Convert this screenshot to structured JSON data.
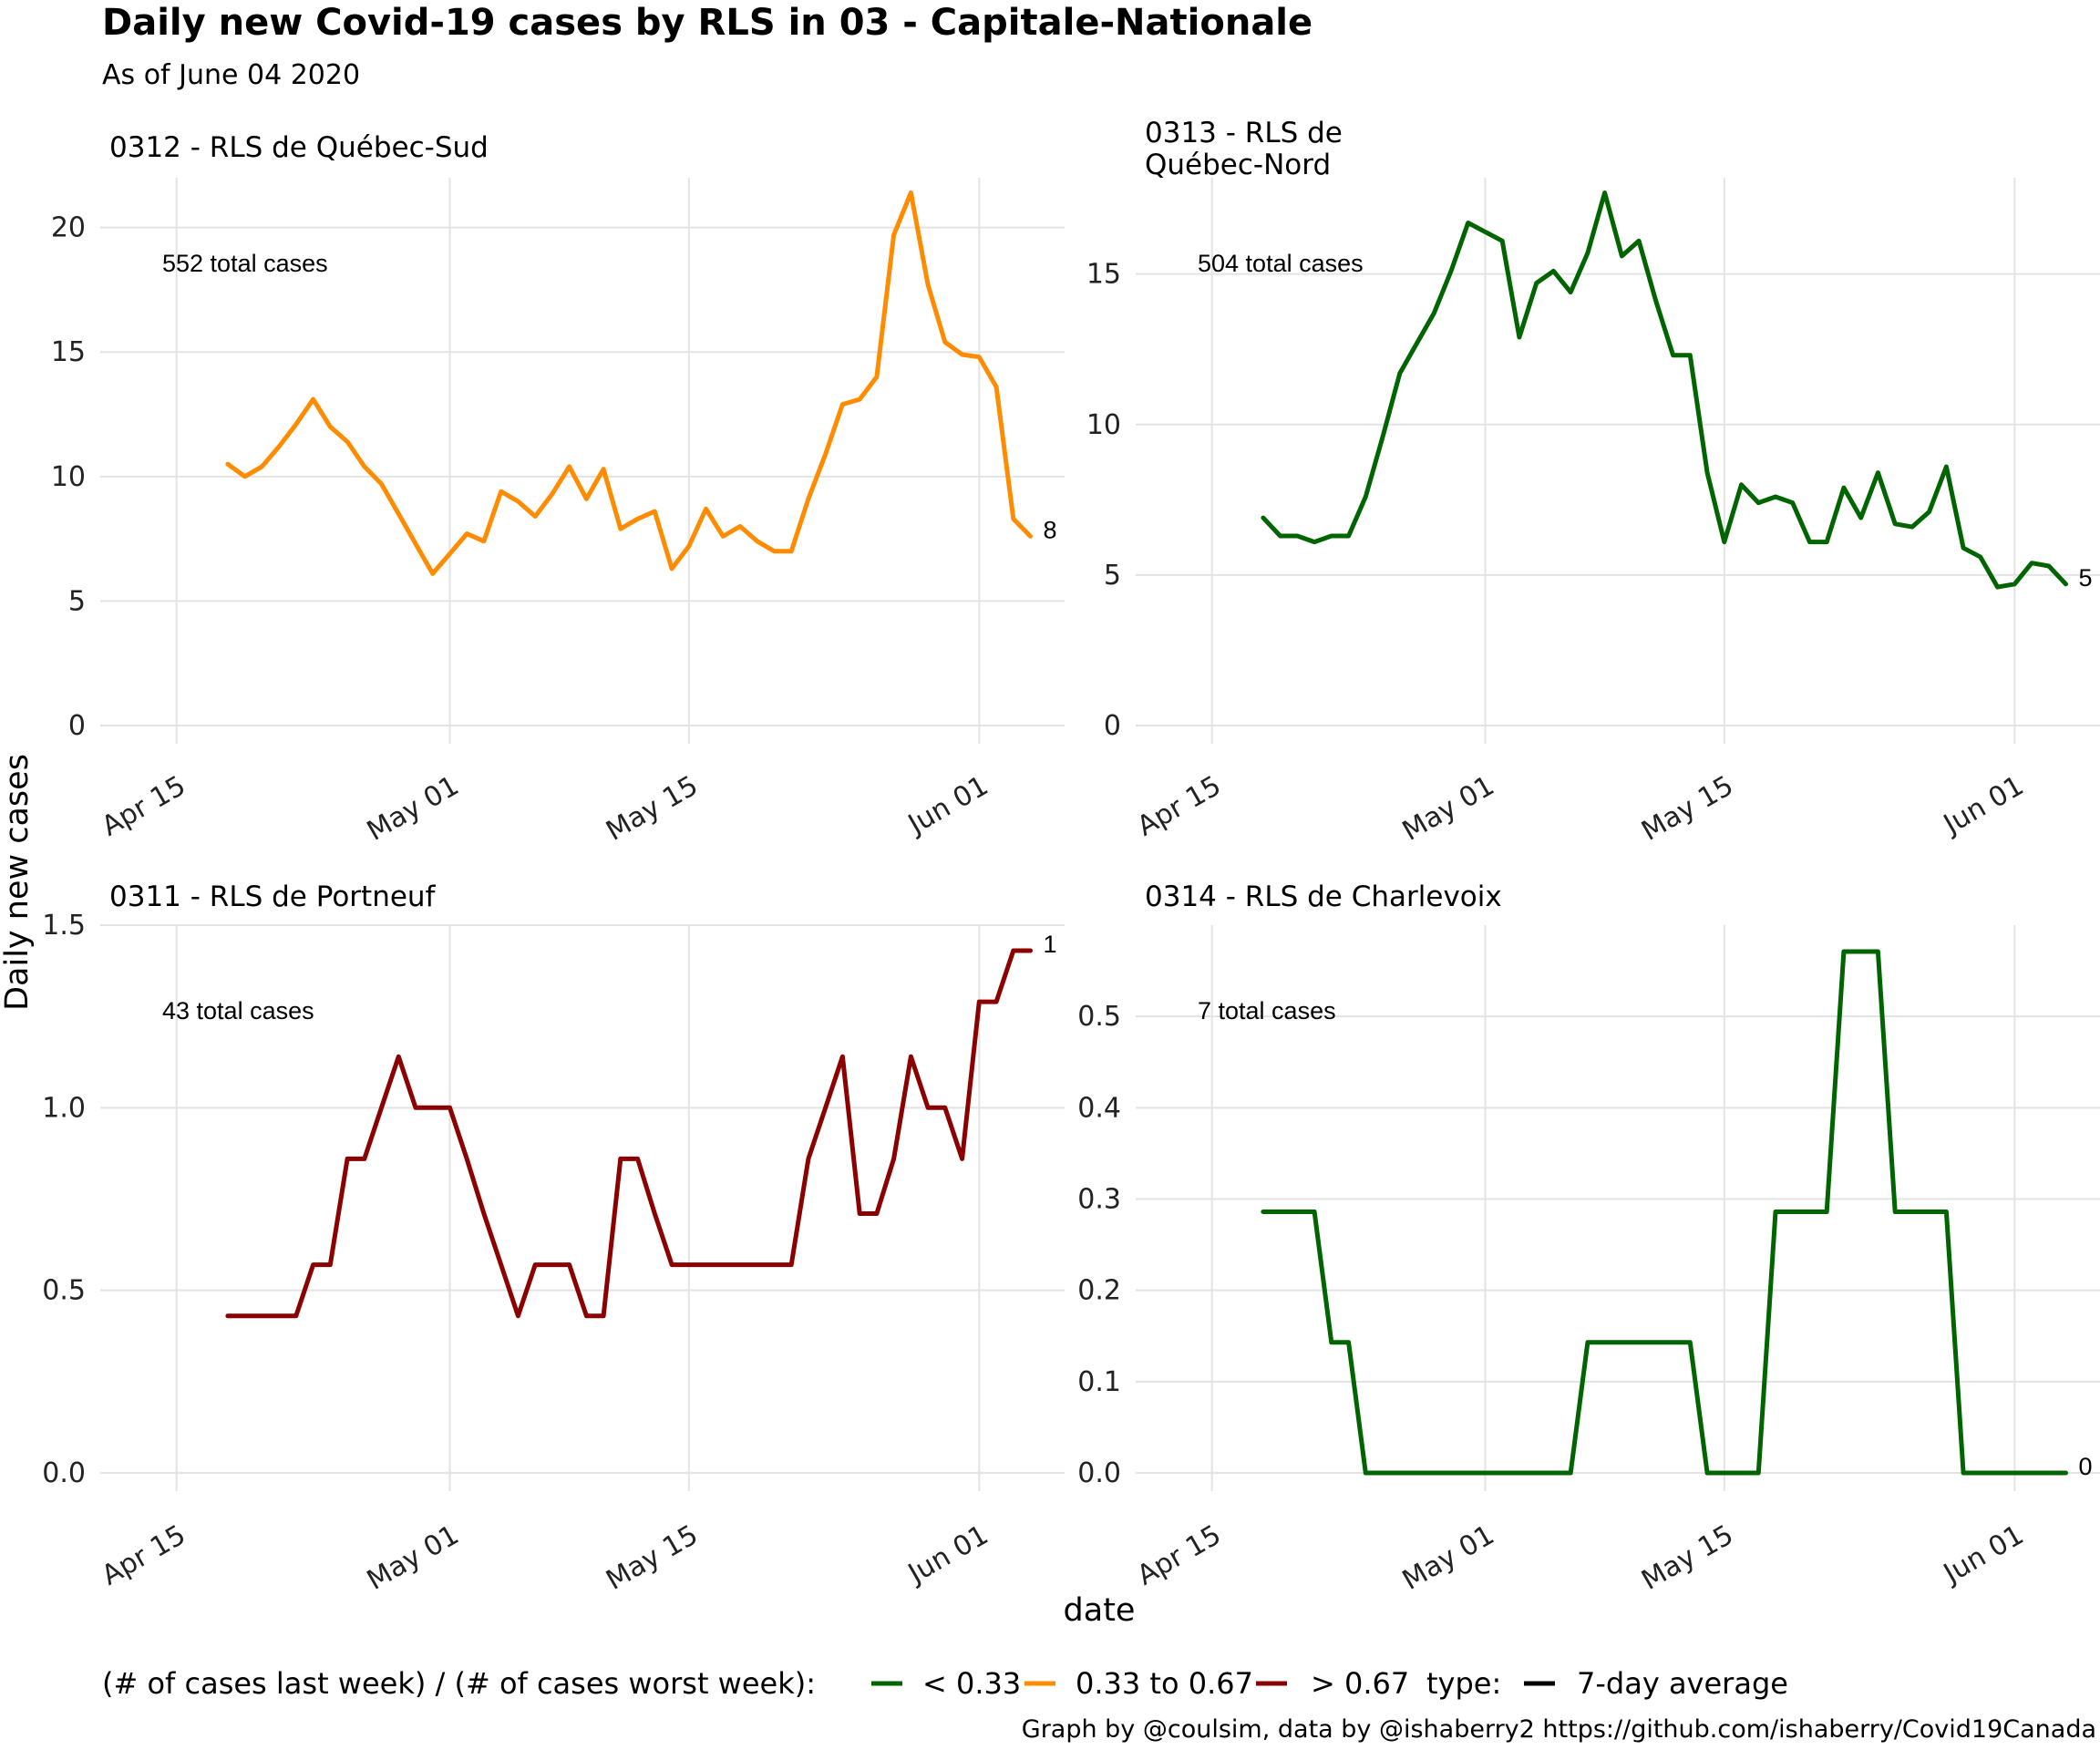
{
  "title": "Daily new Covid-19 cases by RLS in 03 - Capitale-Nationale",
  "subtitle": "As of June 04 2020",
  "x_axis_label": "date",
  "y_axis_label": "Daily new cases",
  "legend": {
    "ratio_title": "(# of cases last week) / (# of cases worst week):",
    "ratio_items": [
      {
        "label": "< 0.33",
        "color": "#006400"
      },
      {
        "label": "0.33 to 0.67",
        "color": "#FF8C00"
      },
      {
        "label": "> 0.67",
        "color": "#8B0000"
      }
    ],
    "type_title": "type:",
    "type_items": [
      {
        "label": "7-day average",
        "color": "#000000"
      }
    ]
  },
  "caption": "Graph by @coulsim, data by @ishaberry2 https://github.com/ishaberry/Covid19Canada",
  "chart_data": [
    {
      "type": "line",
      "title": "0312 - RLS de Québec-Sud",
      "annotation": "552 total cases",
      "end_label": "8",
      "color": "#FF8C00",
      "x_ticks": [
        "Apr 15",
        "May 01",
        "May 15",
        "Jun 01"
      ],
      "y_ticks": [
        "0",
        "5",
        "10",
        "15",
        "20"
      ],
      "xlim": [
        "2020-04-10",
        "2020-06-06"
      ],
      "ylim": [
        0,
        22
      ],
      "x": [
        "2020-04-18",
        "2020-04-19",
        "2020-04-20",
        "2020-04-21",
        "2020-04-22",
        "2020-04-23",
        "2020-04-24",
        "2020-04-25",
        "2020-04-26",
        "2020-04-27",
        "2020-04-28",
        "2020-04-29",
        "2020-04-30",
        "2020-05-01",
        "2020-05-02",
        "2020-05-03",
        "2020-05-04",
        "2020-05-05",
        "2020-05-06",
        "2020-05-07",
        "2020-05-08",
        "2020-05-09",
        "2020-05-10",
        "2020-05-11",
        "2020-05-12",
        "2020-05-13",
        "2020-05-14",
        "2020-05-15",
        "2020-05-16",
        "2020-05-17",
        "2020-05-18",
        "2020-05-19",
        "2020-05-20",
        "2020-05-21",
        "2020-05-22",
        "2020-05-23",
        "2020-05-24",
        "2020-05-25",
        "2020-05-26",
        "2020-05-27",
        "2020-05-28",
        "2020-05-29",
        "2020-05-30",
        "2020-05-31",
        "2020-06-01",
        "2020-06-02",
        "2020-06-03",
        "2020-06-04"
      ],
      "values": [
        10.5,
        10.0,
        10.4,
        11.2,
        12.1,
        13.1,
        12.0,
        11.4,
        10.4,
        9.7,
        8.5,
        7.3,
        6.1,
        6.9,
        7.7,
        7.4,
        9.4,
        9.0,
        8.4,
        9.3,
        10.4,
        9.1,
        10.3,
        7.9,
        8.3,
        8.6,
        6.3,
        7.2,
        8.7,
        7.6,
        8.0,
        7.4,
        7.0,
        7.0,
        9.1,
        10.9,
        12.9,
        13.1,
        14.0,
        19.7,
        21.4,
        17.7,
        15.4,
        14.9,
        14.8,
        13.6,
        8.3,
        7.6
      ]
    },
    {
      "type": "line",
      "title": "0313 - RLS de\nQuébec-Nord",
      "annotation": "504 total cases",
      "end_label": "5",
      "color": "#006400",
      "x_ticks": [
        "Apr 15",
        "May 01",
        "May 15",
        "Jun 01"
      ],
      "y_ticks": [
        "0",
        "5",
        "10",
        "15"
      ],
      "xlim": [
        "2020-04-10",
        "2020-06-06"
      ],
      "ylim": [
        0,
        18.2
      ],
      "x": [
        "2020-04-18",
        "2020-04-19",
        "2020-04-20",
        "2020-04-21",
        "2020-04-22",
        "2020-04-23",
        "2020-04-24",
        "2020-04-25",
        "2020-04-26",
        "2020-04-27",
        "2020-04-28",
        "2020-04-29",
        "2020-04-30",
        "2020-05-01",
        "2020-05-02",
        "2020-05-03",
        "2020-05-04",
        "2020-05-05",
        "2020-05-06",
        "2020-05-07",
        "2020-05-08",
        "2020-05-09",
        "2020-05-10",
        "2020-05-11",
        "2020-05-12",
        "2020-05-13",
        "2020-05-14",
        "2020-05-15",
        "2020-05-16",
        "2020-05-17",
        "2020-05-18",
        "2020-05-19",
        "2020-05-20",
        "2020-05-21",
        "2020-05-22",
        "2020-05-23",
        "2020-05-24",
        "2020-05-25",
        "2020-05-26",
        "2020-05-27",
        "2020-05-28",
        "2020-05-29",
        "2020-05-30",
        "2020-05-31",
        "2020-06-01",
        "2020-06-02",
        "2020-06-03",
        "2020-06-04"
      ],
      "values": [
        6.9,
        6.3,
        6.3,
        6.1,
        6.3,
        6.3,
        7.6,
        9.6,
        11.7,
        12.7,
        13.7,
        15.1,
        16.7,
        16.4,
        16.1,
        12.9,
        14.7,
        15.1,
        14.4,
        15.7,
        17.7,
        15.6,
        16.1,
        14.1,
        12.3,
        12.3,
        8.4,
        6.1,
        8.0,
        7.4,
        7.6,
        7.4,
        6.1,
        6.1,
        7.9,
        6.9,
        8.4,
        6.7,
        6.6,
        7.1,
        8.6,
        5.9,
        5.6,
        4.6,
        4.7,
        5.4,
        5.3,
        4.7
      ]
    },
    {
      "type": "line",
      "title": "0311 - RLS de Portneuf",
      "annotation": "43 total cases",
      "end_label": "1",
      "color": "#8B0000",
      "x_ticks": [
        "Apr 15",
        "May 01",
        "May 15",
        "Jun 01"
      ],
      "y_ticks": [
        "0.0",
        "0.5",
        "1.0",
        "1.5"
      ],
      "xlim": [
        "2020-04-10",
        "2020-06-06"
      ],
      "ylim": [
        0,
        1.5
      ],
      "x": [
        "2020-04-18",
        "2020-04-19",
        "2020-04-20",
        "2020-04-21",
        "2020-04-22",
        "2020-04-23",
        "2020-04-24",
        "2020-04-25",
        "2020-04-26",
        "2020-04-27",
        "2020-04-28",
        "2020-04-29",
        "2020-04-30",
        "2020-05-01",
        "2020-05-02",
        "2020-05-03",
        "2020-05-04",
        "2020-05-05",
        "2020-05-06",
        "2020-05-07",
        "2020-05-08",
        "2020-05-09",
        "2020-05-10",
        "2020-05-11",
        "2020-05-12",
        "2020-05-13",
        "2020-05-14",
        "2020-05-15",
        "2020-05-16",
        "2020-05-17",
        "2020-05-18",
        "2020-05-19",
        "2020-05-20",
        "2020-05-21",
        "2020-05-22",
        "2020-05-23",
        "2020-05-24",
        "2020-05-25",
        "2020-05-26",
        "2020-05-27",
        "2020-05-28",
        "2020-05-29",
        "2020-05-30",
        "2020-05-31",
        "2020-06-01",
        "2020-06-02",
        "2020-06-03",
        "2020-06-04"
      ],
      "values": [
        0.43,
        0.43,
        0.43,
        0.43,
        0.43,
        0.57,
        0.57,
        0.86,
        0.86,
        1.0,
        1.14,
        1.0,
        1.0,
        1.0,
        0.86,
        0.71,
        0.57,
        0.43,
        0.57,
        0.57,
        0.57,
        0.43,
        0.43,
        0.86,
        0.86,
        0.71,
        0.57,
        0.57,
        0.57,
        0.57,
        0.57,
        0.57,
        0.57,
        0.57,
        0.86,
        1.0,
        1.14,
        0.71,
        0.71,
        0.86,
        1.14,
        1.0,
        1.0,
        0.86,
        1.29,
        1.29,
        1.43,
        1.43
      ]
    },
    {
      "type": "line",
      "title": "0314 - RLS de Charlevoix",
      "annotation": "7 total cases",
      "end_label": "0",
      "color": "#006400",
      "x_ticks": [
        "Apr 15",
        "May 01",
        "May 15",
        "Jun 01"
      ],
      "y_ticks": [
        "0.0",
        "0.1",
        "0.2",
        "0.3",
        "0.4",
        "0.5"
      ],
      "xlim": [
        "2020-04-10",
        "2020-06-06"
      ],
      "ylim": [
        0,
        0.6
      ],
      "x": [
        "2020-04-18",
        "2020-04-19",
        "2020-04-20",
        "2020-04-21",
        "2020-04-22",
        "2020-04-23",
        "2020-04-24",
        "2020-04-25",
        "2020-04-26",
        "2020-04-27",
        "2020-04-28",
        "2020-04-29",
        "2020-04-30",
        "2020-05-01",
        "2020-05-02",
        "2020-05-03",
        "2020-05-04",
        "2020-05-05",
        "2020-05-06",
        "2020-05-07",
        "2020-05-08",
        "2020-05-09",
        "2020-05-10",
        "2020-05-11",
        "2020-05-12",
        "2020-05-13",
        "2020-05-14",
        "2020-05-15",
        "2020-05-16",
        "2020-05-17",
        "2020-05-18",
        "2020-05-19",
        "2020-05-20",
        "2020-05-21",
        "2020-05-22",
        "2020-05-23",
        "2020-05-24",
        "2020-05-25",
        "2020-05-26",
        "2020-05-27",
        "2020-05-28",
        "2020-05-29",
        "2020-05-30",
        "2020-05-31",
        "2020-06-01",
        "2020-06-02",
        "2020-06-03",
        "2020-06-04"
      ],
      "values": [
        0.286,
        0.286,
        0.286,
        0.286,
        0.143,
        0.143,
        0.0,
        0.0,
        0.0,
        0.0,
        0.0,
        0.0,
        0.0,
        0.0,
        0.0,
        0.0,
        0.0,
        0.0,
        0.0,
        0.143,
        0.143,
        0.143,
        0.143,
        0.143,
        0.143,
        0.143,
        0.0,
        0.0,
        0.0,
        0.0,
        0.286,
        0.286,
        0.286,
        0.286,
        0.571,
        0.571,
        0.571,
        0.286,
        0.286,
        0.286,
        0.286,
        0.0,
        0.0,
        0.0,
        0.0,
        0.0,
        0.0,
        0.0
      ]
    }
  ]
}
